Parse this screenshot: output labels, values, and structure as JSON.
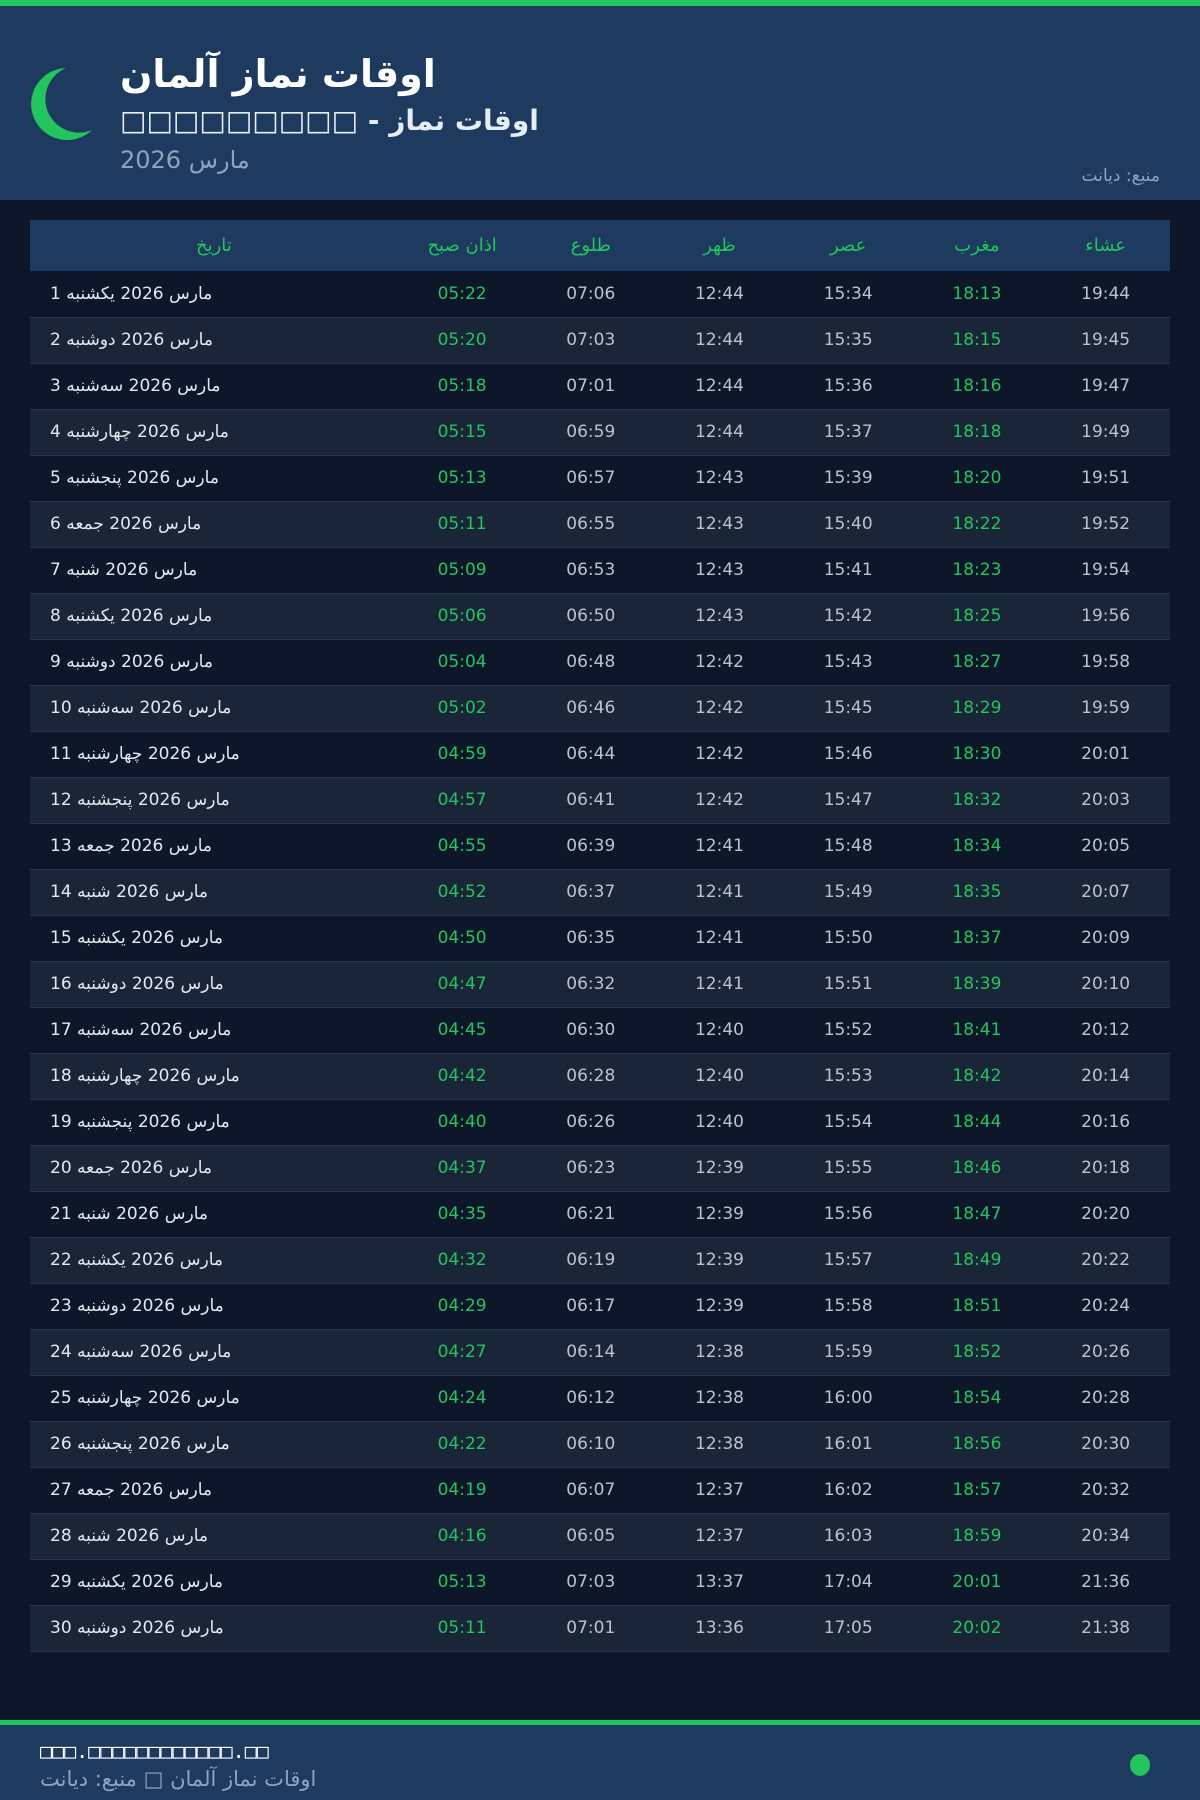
{
  "header": {
    "title": "اوقات نماز آلمان",
    "subtitle": "□□□□□□□□□ - اوقات نماز",
    "month": "مارس 2026",
    "source": "منبع: دیانت"
  },
  "colors": {
    "accent": "#22c55e",
    "header_bg": "#1e3a5f",
    "page_bg": "#0e1729"
  },
  "table": {
    "columns": [
      "تاریخ",
      "اذان صبح",
      "طلوع",
      "ظهر",
      "عصر",
      "مغرب",
      "عشاء"
    ],
    "rows": [
      [
        "1 مارس 2026 یکشنبه",
        "05:22",
        "07:06",
        "12:44",
        "15:34",
        "18:13",
        "19:44"
      ],
      [
        "2 مارس 2026 دوشنبه",
        "05:20",
        "07:03",
        "12:44",
        "15:35",
        "18:15",
        "19:45"
      ],
      [
        "3 مارس 2026 سه‌شنبه",
        "05:18",
        "07:01",
        "12:44",
        "15:36",
        "18:16",
        "19:47"
      ],
      [
        "4 مارس 2026 چهارشنبه",
        "05:15",
        "06:59",
        "12:44",
        "15:37",
        "18:18",
        "19:49"
      ],
      [
        "5 مارس 2026 پنجشنبه",
        "05:13",
        "06:57",
        "12:43",
        "15:39",
        "18:20",
        "19:51"
      ],
      [
        "6 مارس 2026 جمعه",
        "05:11",
        "06:55",
        "12:43",
        "15:40",
        "18:22",
        "19:52"
      ],
      [
        "7 مارس 2026 شنبه",
        "05:09",
        "06:53",
        "12:43",
        "15:41",
        "18:23",
        "19:54"
      ],
      [
        "8 مارس 2026 یکشنبه",
        "05:06",
        "06:50",
        "12:43",
        "15:42",
        "18:25",
        "19:56"
      ],
      [
        "9 مارس 2026 دوشنبه",
        "05:04",
        "06:48",
        "12:42",
        "15:43",
        "18:27",
        "19:58"
      ],
      [
        "10 مارس 2026 سه‌شنبه",
        "05:02",
        "06:46",
        "12:42",
        "15:45",
        "18:29",
        "19:59"
      ],
      [
        "11 مارس 2026 چهارشنبه",
        "04:59",
        "06:44",
        "12:42",
        "15:46",
        "18:30",
        "20:01"
      ],
      [
        "12 مارس 2026 پنجشنبه",
        "04:57",
        "06:41",
        "12:42",
        "15:47",
        "18:32",
        "20:03"
      ],
      [
        "13 مارس 2026 جمعه",
        "04:55",
        "06:39",
        "12:41",
        "15:48",
        "18:34",
        "20:05"
      ],
      [
        "14 مارس 2026 شنبه",
        "04:52",
        "06:37",
        "12:41",
        "15:49",
        "18:35",
        "20:07"
      ],
      [
        "15 مارس 2026 یکشنبه",
        "04:50",
        "06:35",
        "12:41",
        "15:50",
        "18:37",
        "20:09"
      ],
      [
        "16 مارس 2026 دوشنبه",
        "04:47",
        "06:32",
        "12:41",
        "15:51",
        "18:39",
        "20:10"
      ],
      [
        "17 مارس 2026 سه‌شنبه",
        "04:45",
        "06:30",
        "12:40",
        "15:52",
        "18:41",
        "20:12"
      ],
      [
        "18 مارس 2026 چهارشنبه",
        "04:42",
        "06:28",
        "12:40",
        "15:53",
        "18:42",
        "20:14"
      ],
      [
        "19 مارس 2026 پنجشنبه",
        "04:40",
        "06:26",
        "12:40",
        "15:54",
        "18:44",
        "20:16"
      ],
      [
        "20 مارس 2026 جمعه",
        "04:37",
        "06:23",
        "12:39",
        "15:55",
        "18:46",
        "20:18"
      ],
      [
        "21 مارس 2026 شنبه",
        "04:35",
        "06:21",
        "12:39",
        "15:56",
        "18:47",
        "20:20"
      ],
      [
        "22 مارس 2026 یکشنبه",
        "04:32",
        "06:19",
        "12:39",
        "15:57",
        "18:49",
        "20:22"
      ],
      [
        "23 مارس 2026 دوشنبه",
        "04:29",
        "06:17",
        "12:39",
        "15:58",
        "18:51",
        "20:24"
      ],
      [
        "24 مارس 2026 سه‌شنبه",
        "04:27",
        "06:14",
        "12:38",
        "15:59",
        "18:52",
        "20:26"
      ],
      [
        "25 مارس 2026 چهارشنبه",
        "04:24",
        "06:12",
        "12:38",
        "16:00",
        "18:54",
        "20:28"
      ],
      [
        "26 مارس 2026 پنجشنبه",
        "04:22",
        "06:10",
        "12:38",
        "16:01",
        "18:56",
        "20:30"
      ],
      [
        "27 مارس 2026 جمعه",
        "04:19",
        "06:07",
        "12:37",
        "16:02",
        "18:57",
        "20:32"
      ],
      [
        "28 مارس 2026 شنبه",
        "04:16",
        "06:05",
        "12:37",
        "16:03",
        "18:59",
        "20:34"
      ],
      [
        "29 مارس 2026 یکشنبه",
        "05:13",
        "07:03",
        "13:37",
        "17:04",
        "20:01",
        "21:36"
      ],
      [
        "30 مارس 2026 دوشنبه",
        "05:11",
        "07:01",
        "13:36",
        "17:05",
        "20:02",
        "21:38"
      ]
    ]
  },
  "footer": {
    "site": "□□□.□□□□□□□□□□□□.□□",
    "text": "اوقات نماز آلمان □ منبع: دیانت"
  }
}
